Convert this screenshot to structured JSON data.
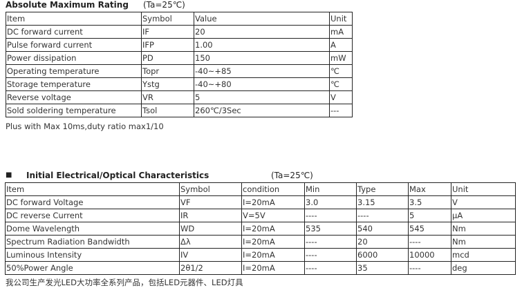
{
  "section1": {
    "title": "Absolute Maximum Rating",
    "condition": "(Ta=25℃)",
    "headers": [
      "Item",
      "Symbol",
      "Value",
      "Unit"
    ],
    "rows": [
      [
        "DC forward current",
        "IF",
        "20",
        "mA"
      ],
      [
        "Pulse forward current",
        "IFP",
        "1.00",
        "A"
      ],
      [
        "Power dissipation",
        "PD",
        "150",
        "mW"
      ],
      [
        "Operating temperature",
        "Topr",
        "-40~+85",
        "℃"
      ],
      [
        "Storage temperature",
        "Ystg",
        "-40~+80",
        "℃"
      ],
      [
        "Reverse voltage",
        "VR",
        "5",
        "V"
      ],
      [
        "Sold soldering temperature",
        "Tsol",
        "260℃/3Sec",
        "---"
      ]
    ],
    "note": "Plus with Max 10ms,duty ratio max1/10"
  },
  "section2": {
    "bullet": "■",
    "title": "Initial Electrical/Optical Characteristics",
    "condition": "(Ta=25℃)",
    "headers": [
      "Item",
      "Symbol",
      "condition",
      "Min",
      "Type",
      "Max",
      "Unit"
    ],
    "rows": [
      [
        "DC forward Voltage",
        "VF",
        "I=20mA",
        "3.0",
        "3.15",
        "3.5",
        "V"
      ],
      [
        "DC reverse Current",
        "IR",
        "V=5V",
        "----",
        "----",
        "5",
        "μA"
      ],
      [
        "Dome Wavelength",
        "WD",
        "I=20mA",
        "535",
        "540",
        "545",
        "Nm"
      ],
      [
        "Spectrum Radiation   Bandwidth",
        "Δλ",
        "I=20mA",
        "----",
        "20",
        "----",
        "Nm"
      ],
      [
        "Luminous Intensity",
        "IV",
        "I=20mA",
        "----",
        "6000",
        "10000",
        "mcd"
      ],
      [
        "50%Power Angle",
        "2θ1/2",
        "I=20mA",
        "----",
        "35",
        "----",
        "deg"
      ]
    ]
  },
  "footer": "我公司生产发光LED大功率全系列产品，包括LED元器件、LED灯具"
}
